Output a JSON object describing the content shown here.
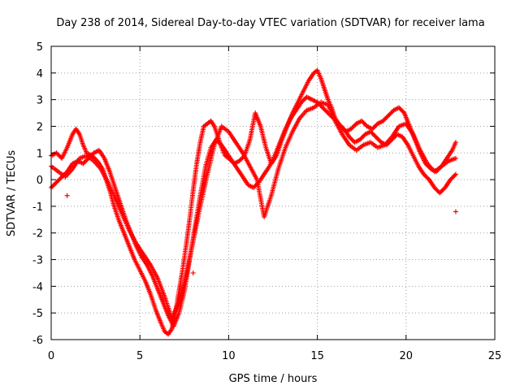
{
  "chart_data": {
    "type": "scatter",
    "title": "Day 238 of 2014, Sidereal Day-to-day VTEC variation (SDTVAR) for receiver lama",
    "xlabel": "GPS time / hours",
    "ylabel": "SDTVAR / TECUs",
    "xlim": [
      0,
      25
    ],
    "ylim": [
      -6,
      5
    ],
    "xticks": [
      0,
      5,
      10,
      15,
      20,
      25
    ],
    "yticks": [
      -6,
      -5,
      -4,
      -3,
      -2,
      -1,
      0,
      1,
      2,
      3,
      4,
      5
    ],
    "grid": true,
    "legend": "none",
    "marker": "+",
    "color": "#ff0000",
    "series": [
      {
        "x": [
          0.0,
          0.3,
          0.6,
          0.9,
          1.2,
          1.4,
          1.6,
          1.8,
          2.0,
          2.3,
          2.6,
          2.9,
          3.1,
          3.3,
          3.5,
          3.8,
          4.1,
          4.4,
          4.7,
          5.0,
          5.3,
          5.6,
          5.9,
          6.2,
          6.4,
          6.6,
          6.8,
          7.0,
          7.2,
          7.4,
          7.6,
          7.8,
          8.0,
          8.2,
          8.4,
          8.6,
          8.8,
          9.0,
          9.2,
          9.4,
          9.6,
          9.8,
          10.0,
          10.3,
          10.6,
          10.9,
          11.2,
          11.5,
          11.8,
          12.1,
          12.4,
          12.7,
          13.0,
          13.3,
          13.6,
          13.9,
          14.2,
          14.5,
          14.8,
          15.0,
          15.2,
          15.4,
          15.6,
          15.8,
          16.0,
          16.3,
          16.6,
          16.9,
          17.2,
          17.5,
          17.8,
          18.1,
          18.4,
          18.7,
          19.0,
          19.3,
          19.6,
          19.9,
          20.2,
          20.5,
          20.8,
          21.1,
          21.4,
          21.7,
          22.0,
          22.3,
          22.6,
          22.8
        ],
        "y": [
          0.9,
          1.0,
          0.8,
          1.2,
          1.7,
          1.9,
          1.7,
          1.3,
          1.0,
          0.9,
          0.7,
          0.4,
          0.0,
          -0.4,
          -0.9,
          -1.5,
          -2.0,
          -2.5,
          -3.0,
          -3.4,
          -3.8,
          -4.3,
          -4.9,
          -5.4,
          -5.7,
          -5.8,
          -5.6,
          -5.0,
          -4.2,
          -3.4,
          -2.5,
          -1.5,
          -0.4,
          0.6,
          1.4,
          2.0,
          2.1,
          2.2,
          2.0,
          1.6,
          1.2,
          0.9,
          0.8,
          0.6,
          0.7,
          0.9,
          1.5,
          2.5,
          2.0,
          1.2,
          0.6,
          0.9,
          1.5,
          2.0,
          2.5,
          2.9,
          3.3,
          3.7,
          4.0,
          4.1,
          3.8,
          3.4,
          3.0,
          2.7,
          2.3,
          2.0,
          1.8,
          1.9,
          2.1,
          2.2,
          2.0,
          1.9,
          2.1,
          2.2,
          2.4,
          2.6,
          2.7,
          2.5,
          2.0,
          1.5,
          1.0,
          0.6,
          0.4,
          0.3,
          0.5,
          0.8,
          1.1,
          1.4
        ]
      },
      {
        "x": [
          0.0,
          0.3,
          0.6,
          0.9,
          1.2,
          1.5,
          1.8,
          2.1,
          2.4,
          2.7,
          3.0,
          3.3,
          3.6,
          3.9,
          4.2,
          4.5,
          4.8,
          5.1,
          5.4,
          5.7,
          6.0,
          6.3,
          6.6,
          6.9,
          7.2,
          7.5,
          7.8,
          8.1,
          8.4,
          8.7,
          9.0,
          9.3,
          9.6,
          9.9,
          10.2,
          10.5,
          10.8,
          11.1,
          11.4,
          11.7,
          12.0,
          12.3,
          12.6,
          12.9,
          13.2,
          13.5,
          13.8,
          14.1,
          14.4,
          14.7,
          15.0,
          15.3,
          15.6,
          15.9,
          16.2,
          16.5,
          16.8,
          17.1,
          17.4,
          17.7,
          18.0,
          18.3,
          18.6,
          18.9,
          19.2,
          19.5,
          19.8,
          20.1,
          20.4,
          20.7,
          21.0,
          21.3,
          21.6,
          21.9,
          22.2,
          22.5,
          22.8
        ],
        "y": [
          -0.3,
          -0.1,
          0.1,
          0.3,
          0.6,
          0.7,
          0.6,
          0.8,
          1.0,
          1.1,
          0.8,
          0.3,
          -0.3,
          -0.9,
          -1.5,
          -2.0,
          -2.5,
          -2.9,
          -3.2,
          -3.6,
          -4.1,
          -4.6,
          -5.1,
          -5.5,
          -5.0,
          -4.2,
          -3.0,
          -1.8,
          -0.6,
          0.5,
          1.2,
          1.5,
          1.3,
          1.0,
          0.7,
          0.4,
          0.1,
          -0.2,
          -0.3,
          -0.1,
          0.2,
          0.5,
          0.9,
          1.4,
          1.9,
          2.3,
          2.6,
          2.9,
          3.1,
          3.0,
          2.9,
          2.7,
          2.5,
          2.3,
          2.1,
          1.9,
          1.6,
          1.4,
          1.5,
          1.7,
          1.8,
          1.6,
          1.4,
          1.3,
          1.5,
          1.7,
          1.6,
          1.3,
          0.9,
          0.5,
          0.2,
          0.0,
          -0.3,
          -0.5,
          -0.3,
          0.0,
          0.2
        ]
      },
      {
        "x": [
          0.0,
          0.4,
          0.8,
          1.2,
          1.6,
          2.0,
          2.4,
          2.8,
          3.2,
          3.6,
          4.0,
          4.4,
          4.8,
          5.2,
          5.6,
          6.0,
          6.4,
          6.8,
          7.2,
          7.6,
          8.0,
          8.4,
          8.8,
          9.2,
          9.6,
          10.0,
          10.4,
          10.8,
          11.2,
          11.6,
          12.0,
          12.4,
          12.8,
          13.2,
          13.6,
          14.0,
          14.4,
          14.8,
          15.2,
          15.6,
          16.0,
          16.4,
          16.8,
          17.2,
          17.6,
          18.0,
          18.4,
          18.8,
          19.2,
          19.6,
          20.0,
          20.4,
          20.8,
          21.2,
          21.6,
          22.0,
          22.4,
          22.8
        ],
        "y": [
          0.5,
          0.3,
          0.1,
          0.4,
          0.8,
          0.9,
          0.7,
          0.4,
          -0.1,
          -0.7,
          -1.3,
          -1.9,
          -2.4,
          -2.8,
          -3.2,
          -3.7,
          -4.4,
          -5.2,
          -4.6,
          -3.6,
          -2.3,
          -1.0,
          0.2,
          1.3,
          2.0,
          1.8,
          1.4,
          1.0,
          0.5,
          0.0,
          -1.4,
          -0.6,
          0.4,
          1.2,
          1.8,
          2.3,
          2.6,
          2.7,
          2.9,
          2.8,
          2.2,
          1.7,
          1.3,
          1.1,
          1.3,
          1.4,
          1.2,
          1.3,
          1.6,
          2.0,
          2.1,
          1.7,
          1.1,
          0.6,
          0.3,
          0.5,
          0.7,
          0.8
        ]
      }
    ],
    "outliers": [
      {
        "x": 22.8,
        "y": -1.2
      },
      {
        "x": 8.0,
        "y": -3.5
      },
      {
        "x": 0.9,
        "y": -0.6
      }
    ]
  }
}
